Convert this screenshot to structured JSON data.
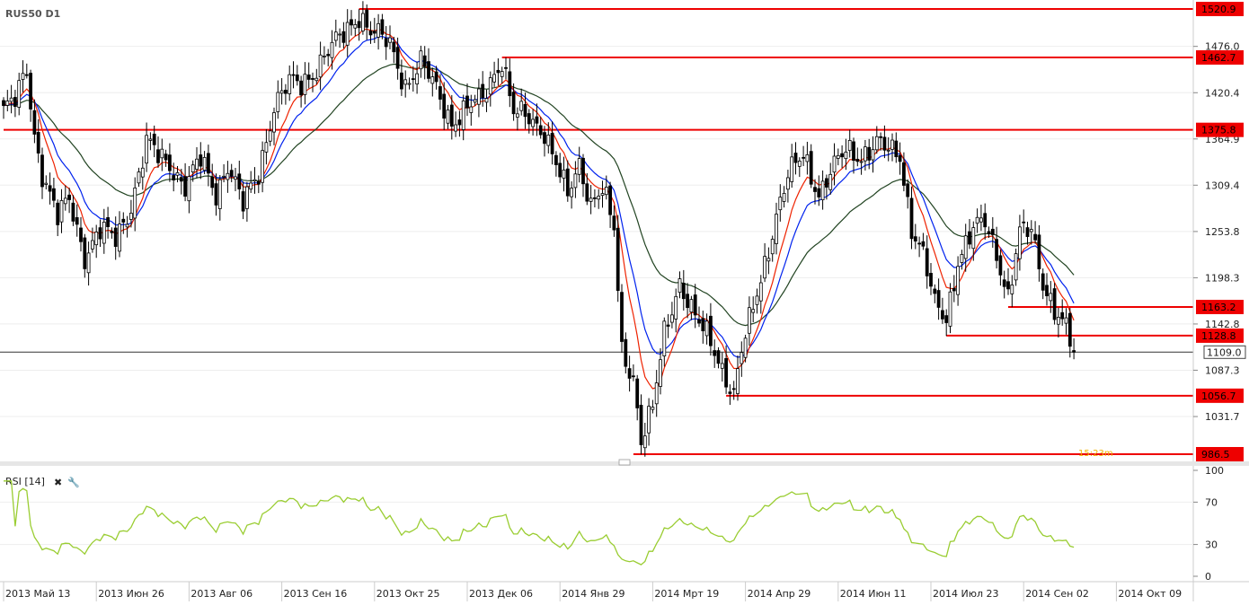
{
  "chart_data": {
    "type": "candlestick",
    "title": "RUS50 D1",
    "price_axis": {
      "ylim": [
        986.5,
        1521
      ],
      "ticks": [
        {
          "v": 1476.0,
          "label": "1476.0"
        },
        {
          "v": 1420.4,
          "label": "1420.4"
        },
        {
          "v": 1364.9,
          "label": "1364.9"
        },
        {
          "v": 1309.4,
          "label": "1309.4"
        },
        {
          "v": 1253.8,
          "label": "1253.8"
        },
        {
          "v": 1198.3,
          "label": "1198.3"
        },
        {
          "v": 1142.8,
          "label": "1142.8"
        },
        {
          "v": 1087.3,
          "label": "1087.3"
        },
        {
          "v": 1031.7,
          "label": "1031.7"
        }
      ]
    },
    "current_price": {
      "value": 1109.0,
      "label": "1109.0"
    },
    "levels": [
      {
        "value": 1520.9,
        "label": "1520.9",
        "start": 92
      },
      {
        "value": 1462.7,
        "label": "1462.7",
        "start": 129
      },
      {
        "value": 1375.8,
        "label": "1375.8",
        "start": 0
      },
      {
        "value": 1163.2,
        "label": "1163.2",
        "start": 260
      },
      {
        "value": 1128.8,
        "label": "1128.8",
        "start": 244
      },
      {
        "value": 1056.7,
        "label": "1056.7",
        "start": 187
      },
      {
        "value": 986.5,
        "label": "986.5",
        "start": 163
      }
    ],
    "x_labels": [
      {
        "i": 0,
        "label": "2013 Май 13"
      },
      {
        "i": 24,
        "label": "2013 Июн 26"
      },
      {
        "i": 48,
        "label": "2013 Авг 06"
      },
      {
        "i": 72,
        "label": "2013 Сен 16"
      },
      {
        "i": 96,
        "label": "2013 Окт 25"
      },
      {
        "i": 120,
        "label": "2013 Дек 06"
      },
      {
        "i": 144,
        "label": "2014 Янв 29"
      },
      {
        "i": 168,
        "label": "2014 Мрт 19"
      },
      {
        "i": 192,
        "label": "2014 Апр 29"
      },
      {
        "i": 216,
        "label": "2014 Июн 11"
      },
      {
        "i": 240,
        "label": "2014 Июл 23"
      },
      {
        "i": 264,
        "label": "2014 Сен 02"
      },
      {
        "i": 288,
        "label": "2014 Окт 09"
      }
    ],
    "anchors": [
      [
        0,
        1400
      ],
      [
        3,
        1410
      ],
      [
        6,
        1448
      ],
      [
        8,
        1370
      ],
      [
        10,
        1325
      ],
      [
        14,
        1270
      ],
      [
        17,
        1292
      ],
      [
        21,
        1225
      ],
      [
        25,
        1255
      ],
      [
        29,
        1245
      ],
      [
        33,
        1285
      ],
      [
        37,
        1360
      ],
      [
        40,
        1345
      ],
      [
        43,
        1335
      ],
      [
        47,
        1308
      ],
      [
        51,
        1340
      ],
      [
        55,
        1300
      ],
      [
        58,
        1335
      ],
      [
        62,
        1285
      ],
      [
        66,
        1325
      ],
      [
        70,
        1405
      ],
      [
        74,
        1432
      ],
      [
        77,
        1430
      ],
      [
        80,
        1445
      ],
      [
        84,
        1470
      ],
      [
        88,
        1490
      ],
      [
        92,
        1515
      ],
      [
        95,
        1495
      ],
      [
        100,
        1478
      ],
      [
        104,
        1430
      ],
      [
        108,
        1455
      ],
      [
        112,
        1425
      ],
      [
        116,
        1385
      ],
      [
        120,
        1400
      ],
      [
        124,
        1415
      ],
      [
        127,
        1445
      ],
      [
        129,
        1460
      ],
      [
        132,
        1395
      ],
      [
        136,
        1390
      ],
      [
        140,
        1375
      ],
      [
        143,
        1335
      ],
      [
        146,
        1295
      ],
      [
        149,
        1335
      ],
      [
        152,
        1290
      ],
      [
        155,
        1305
      ],
      [
        158,
        1255
      ],
      [
        160,
        1110
      ],
      [
        163,
        1080
      ],
      [
        165,
        1005
      ],
      [
        168,
        1040
      ],
      [
        171,
        1130
      ],
      [
        175,
        1195
      ],
      [
        179,
        1150
      ],
      [
        183,
        1120
      ],
      [
        187,
        1080
      ],
      [
        189,
        1060
      ],
      [
        191,
        1110
      ],
      [
        194,
        1160
      ],
      [
        197,
        1215
      ],
      [
        200,
        1275
      ],
      [
        203,
        1320
      ],
      [
        207,
        1345
      ],
      [
        211,
        1300
      ],
      [
        214,
        1325
      ],
      [
        218,
        1350
      ],
      [
        222,
        1345
      ],
      [
        226,
        1360
      ],
      [
        229,
        1350
      ],
      [
        232,
        1345
      ],
      [
        235,
        1260
      ],
      [
        238,
        1225
      ],
      [
        241,
        1165
      ],
      [
        244,
        1150
      ],
      [
        247,
        1220
      ],
      [
        251,
        1255
      ],
      [
        254,
        1265
      ],
      [
        257,
        1230
      ],
      [
        260,
        1175
      ],
      [
        263,
        1250
      ],
      [
        266,
        1255
      ],
      [
        269,
        1195
      ],
      [
        272,
        1160
      ],
      [
        275,
        1135
      ],
      [
        277,
        1109
      ]
    ],
    "n_bars": 278,
    "ma_periods": {
      "red": 8,
      "blue": 14,
      "green": 34
    },
    "rsi": {
      "label": "RSI [14]",
      "ticks": [
        {
          "v": 100,
          "label": "100"
        },
        {
          "v": 70,
          "label": "70"
        },
        {
          "v": 30,
          "label": "30"
        },
        {
          "v": 0,
          "label": "0"
        }
      ]
    },
    "time_left": "15:23m",
    "colors": {
      "level": "#ee0000",
      "candle": "#000000",
      "ma_fast": "#ee2200",
      "ma_mid": "#0022ee",
      "ma_slow": "#224422",
      "rsi": "#9acd32",
      "current_line": "#333333"
    }
  }
}
